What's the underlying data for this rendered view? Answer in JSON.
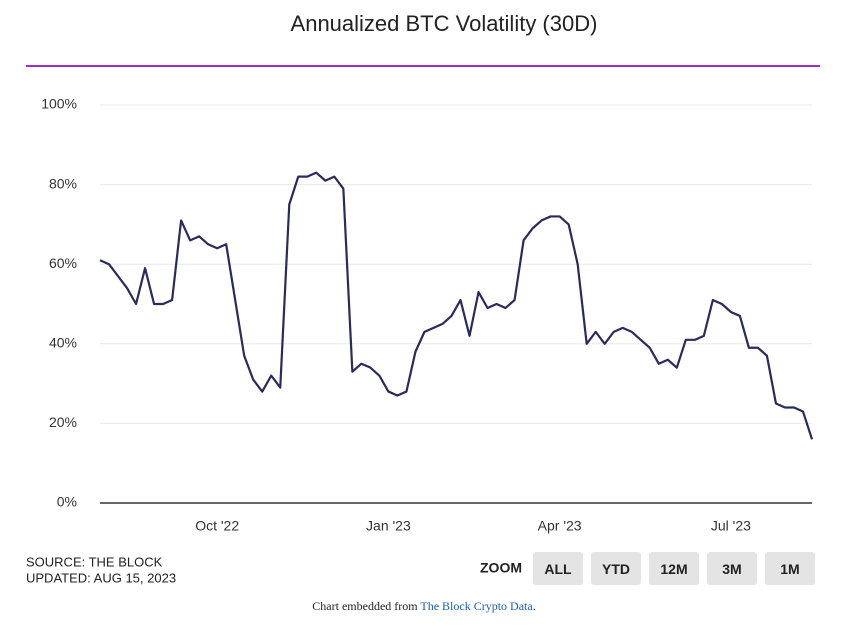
{
  "chart_data": {
    "type": "line",
    "title": "Annualized BTC Volatility (30D)",
    "categories": [
      null,
      null,
      null,
      null,
      null,
      null,
      null,
      null,
      null,
      null,
      null,
      null,
      null,
      "Oct '22",
      null,
      null,
      null,
      null,
      null,
      null,
      null,
      null,
      null,
      null,
      null,
      null,
      null,
      null,
      null,
      null,
      null,
      null,
      "Jan '23",
      null,
      null,
      null,
      null,
      null,
      null,
      null,
      null,
      null,
      null,
      null,
      null,
      null,
      null,
      null,
      null,
      null,
      null,
      "Apr '23",
      null,
      null,
      null,
      null,
      null,
      null,
      null,
      null,
      null,
      null,
      null,
      null,
      null,
      null,
      null,
      null,
      null,
      null,
      "Jul '23",
      null,
      null,
      null,
      null,
      null,
      null,
      null,
      null,
      null
    ],
    "series": [
      {
        "name": "BTC Volatility",
        "color": "#2b2a5c",
        "values": [
          61,
          60,
          57,
          54,
          50,
          59,
          50,
          50,
          51,
          71,
          66,
          67,
          65,
          64,
          65,
          51,
          37,
          31,
          28,
          32,
          29,
          75,
          82,
          82,
          83,
          81,
          82,
          79,
          33,
          35,
          34,
          32,
          28,
          27,
          28,
          38,
          43,
          44,
          45,
          47,
          51,
          42,
          53,
          49,
          50,
          49,
          51,
          66,
          69,
          71,
          72,
          72,
          70,
          60,
          40,
          43,
          40,
          43,
          44,
          43,
          41,
          39,
          35,
          36,
          34,
          41,
          41,
          42,
          51,
          50,
          48,
          47,
          39,
          39,
          37,
          25,
          24,
          24,
          23,
          16
        ]
      }
    ],
    "ylim": [
      0,
      100
    ],
    "yticks": [
      {
        "value": 0,
        "label": "0%"
      },
      {
        "value": 20,
        "label": "20%"
      },
      {
        "value": 40,
        "label": "40%"
      },
      {
        "value": 60,
        "label": "60%"
      },
      {
        "value": 80,
        "label": "80%"
      },
      {
        "value": 100,
        "label": "100%"
      }
    ],
    "grid": true
  },
  "footer": {
    "source": "SOURCE: THE BLOCK",
    "updated": "UPDATED: AUG 15, 2023",
    "zoom_label": "ZOOM",
    "zoom_buttons": [
      "ALL",
      "YTD",
      "12M",
      "3M",
      "1M"
    ],
    "embed_text": "Chart embedded from ",
    "embed_link": "The Block Crypto Data",
    "embed_end": "."
  }
}
